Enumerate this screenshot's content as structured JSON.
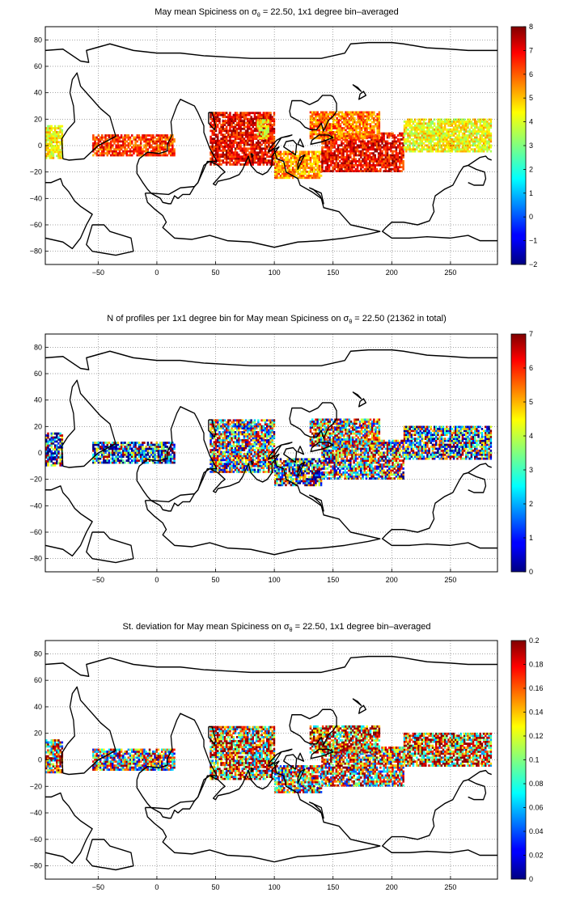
{
  "chart_data": [
    {
      "type": "heatmap",
      "title": "May mean Spiciness on σθ = 22.50, 1x1 degree bin–averaged",
      "title_main": "May mean Spiciness on σ",
      "title_sub": "θ",
      "title_rest": " = 22.50, 1x1 degree bin–averaged",
      "xlabel": "",
      "ylabel": "",
      "xlim": [
        -95,
        290
      ],
      "ylim": [
        -90,
        90
      ],
      "xticks": [
        -50,
        0,
        50,
        100,
        150,
        200,
        250
      ],
      "yticks": [
        -80,
        -60,
        -40,
        -20,
        0,
        20,
        40,
        60,
        80
      ],
      "grid": true,
      "colorbar": {
        "min": -2,
        "max": 8,
        "ticks": [
          -2,
          -1,
          0,
          1,
          2,
          3,
          4,
          5,
          6,
          7,
          8
        ]
      },
      "regions": [
        {
          "lon": [
            -95,
            -80
          ],
          "lat": [
            -10,
            15
          ],
          "value": 4.3
        },
        {
          "lon": [
            -55,
            15
          ],
          "lat": [
            -8,
            8
          ],
          "value": 6.2
        },
        {
          "lon": [
            45,
            100
          ],
          "lat": [
            -15,
            25
          ],
          "value": 6.8
        },
        {
          "lon": [
            85,
            95
          ],
          "lat": [
            5,
            20
          ],
          "value": 4.3
        },
        {
          "lon": [
            100,
            140
          ],
          "lat": [
            -25,
            -5
          ],
          "value": 5.3
        },
        {
          "lon": [
            140,
            210
          ],
          "lat": [
            -20,
            10
          ],
          "value": 6.8
        },
        {
          "lon": [
            130,
            190
          ],
          "lat": [
            5,
            25
          ],
          "value": 5.6
        },
        {
          "lon": [
            210,
            285
          ],
          "lat": [
            -5,
            20
          ],
          "value": 4.2
        }
      ]
    },
    {
      "type": "heatmap",
      "title": "N of profiles per 1x1 degree bin for May mean Spiciness on σθ = 22.50 (21362 in total)",
      "title_main": "N of profiles per 1x1 degree bin for May mean Spiciness on σ",
      "title_sub": "θ",
      "title_rest": " = 22.50 (21362 in total)",
      "xlabel": "",
      "ylabel": "",
      "xlim": [
        -95,
        290
      ],
      "ylim": [
        -90,
        90
      ],
      "xticks": [
        -50,
        0,
        50,
        100,
        150,
        200,
        250
      ],
      "yticks": [
        -80,
        -60,
        -40,
        -20,
        0,
        20,
        40,
        60,
        80
      ],
      "grid": true,
      "colorbar": {
        "min": 0,
        "max": 7,
        "ticks": [
          0,
          1,
          2,
          3,
          4,
          5,
          6,
          7
        ]
      },
      "regions": [
        {
          "lon": [
            -95,
            -80
          ],
          "lat": [
            -10,
            15
          ],
          "value": 1.5
        },
        {
          "lon": [
            -55,
            15
          ],
          "lat": [
            -8,
            8
          ],
          "value": 1.8
        },
        {
          "lon": [
            45,
            100
          ],
          "lat": [
            -15,
            25
          ],
          "value": 3.2
        },
        {
          "lon": [
            100,
            140
          ],
          "lat": [
            -25,
            -5
          ],
          "value": 2.5
        },
        {
          "lon": [
            140,
            210
          ],
          "lat": [
            -20,
            10
          ],
          "value": 3.0
        },
        {
          "lon": [
            130,
            190
          ],
          "lat": [
            5,
            25
          ],
          "value": 4.0
        },
        {
          "lon": [
            210,
            285
          ],
          "lat": [
            -5,
            20
          ],
          "value": 2.5
        }
      ]
    },
    {
      "type": "heatmap",
      "title": "St. deviation for May mean Spiciness on σθ = 22.50, 1x1 degree bin–averaged",
      "title_main": "St. deviation for May mean Spiciness on σ",
      "title_sub": "θ",
      "title_rest": " = 22.50, 1x1 degree bin–averaged",
      "xlabel": "",
      "ylabel": "",
      "xlim": [
        -95,
        290
      ],
      "ylim": [
        -90,
        90
      ],
      "xticks": [
        -50,
        0,
        50,
        100,
        150,
        200,
        250
      ],
      "yticks": [
        -80,
        -60,
        -40,
        -20,
        0,
        20,
        40,
        60,
        80
      ],
      "grid": true,
      "colorbar": {
        "min": 0,
        "max": 0.2,
        "ticks": [
          0,
          0.02,
          0.04,
          0.06,
          0.08,
          0.1,
          0.12,
          0.14,
          0.16,
          0.18,
          0.2
        ]
      },
      "regions": [
        {
          "lon": [
            -95,
            -80
          ],
          "lat": [
            -10,
            15
          ],
          "value": 0.12
        },
        {
          "lon": [
            -55,
            15
          ],
          "lat": [
            -8,
            8
          ],
          "value": 0.1
        },
        {
          "lon": [
            45,
            100
          ],
          "lat": [
            -15,
            25
          ],
          "value": 0.13
        },
        {
          "lon": [
            100,
            140
          ],
          "lat": [
            -25,
            -5
          ],
          "value": 0.1
        },
        {
          "lon": [
            140,
            210
          ],
          "lat": [
            -20,
            10
          ],
          "value": 0.12
        },
        {
          "lon": [
            130,
            190
          ],
          "lat": [
            5,
            25
          ],
          "value": 0.15
        },
        {
          "lon": [
            210,
            285
          ],
          "lat": [
            -5,
            20
          ],
          "value": 0.14
        }
      ]
    }
  ]
}
